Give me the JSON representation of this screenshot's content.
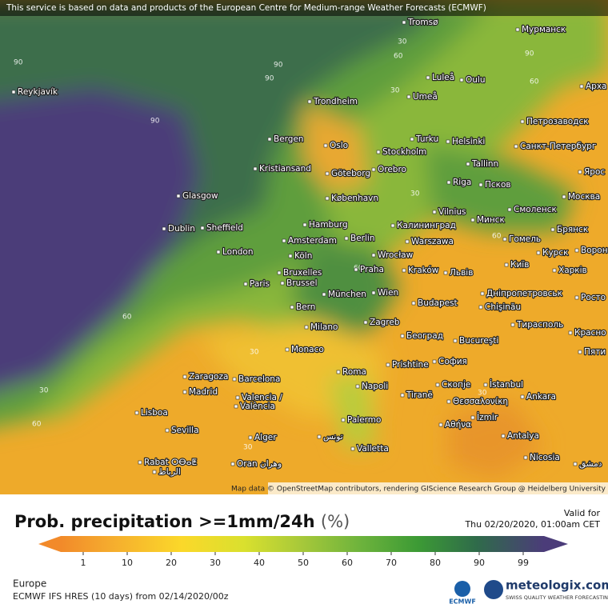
{
  "header": {
    "notice": "This service is based on data and products of the European Centre for Medium-range Weather Forecasts (ECMWF)"
  },
  "map": {
    "cities": [
      "Tromsø",
      "Мурманск",
      "Reykjavík",
      "Luleå",
      "Oulu",
      "Арха",
      "Trondheim",
      "Umeå",
      "Петрозаводск",
      "Bergen",
      "Turku",
      "Helsinki",
      "Санкт-Петербург",
      "Oslo",
      "Stockholm",
      "Orebro",
      "Kristiansand",
      "Göteborg",
      "Tallinn",
      "Ярос",
      "Псков",
      "Riga",
      "Glasgow",
      "København",
      "Москва",
      "Vilnius",
      "Смоленск",
      "Минск",
      "Hamburg",
      "Калининград",
      "Dublin",
      "Sheffield",
      "Брянск",
      "Amsterdam",
      "Berlin",
      "Warszawa",
      "Гомель",
      "London",
      "Köln",
      "Wrocław",
      "Курск",
      "Ворон",
      "Київ",
      "Bruxelles",
      "Praha",
      "Kraków",
      "Львів",
      "Харків",
      "Brussel",
      "Paris",
      "Дніпропетровськ",
      "Wien",
      "München",
      "Росто",
      "Chişinău",
      "Budapest",
      "Bern",
      "Тирасполь",
      "Zagreb",
      "Milano",
      "Београд",
      "Красно",
      "Bucureşti",
      "Monaco",
      "Пяти",
      "Prishtine",
      "София",
      "Zaragoza",
      "Barcelona",
      "Roma",
      "Napoli",
      "Скопје",
      "İstanbul",
      "Madrid",
      "Valencia /",
      "València",
      "Tiranë",
      "Θεσσαλονίκη",
      "Ankara",
      "Lisboa",
      "Αθήνα",
      "İzmir",
      "Palermo",
      "Sevilla",
      "Alger",
      "تونس",
      "Antalya",
      "Valletta",
      "Nicosia",
      "Rabat ⵔⴱⴰⵟ",
      "الرباط",
      "Oran وهران",
      "دمشق"
    ],
    "contour_labels": [
      "90",
      "90",
      "90",
      "90",
      "90",
      "60",
      "60",
      "60",
      "60",
      "60",
      "30",
      "30",
      "30",
      "30",
      "30",
      "30",
      "30",
      "60"
    ],
    "attribution": "Map data © OpenStreetMap contributors, rendering GIScience Research Group @ Heidelberg University"
  },
  "legend": {
    "title": "Prob. precipitation >=1mm/24h",
    "unit": "(%)",
    "ticks": [
      1,
      10,
      20,
      30,
      40,
      50,
      60,
      70,
      80,
      90,
      99
    ]
  },
  "valid": {
    "label": "Valid for",
    "time": "Thu 02/20/2020, 01:00am CET"
  },
  "footer": {
    "region": "Europe",
    "model": "ECMWF IFS HRES (10 days) from 02/14/2020/00z",
    "ecmwf": "ECMWF",
    "brand": "meteologix.com",
    "tagline": "SWISS QUALITY WEATHER FORECASTING"
  }
}
